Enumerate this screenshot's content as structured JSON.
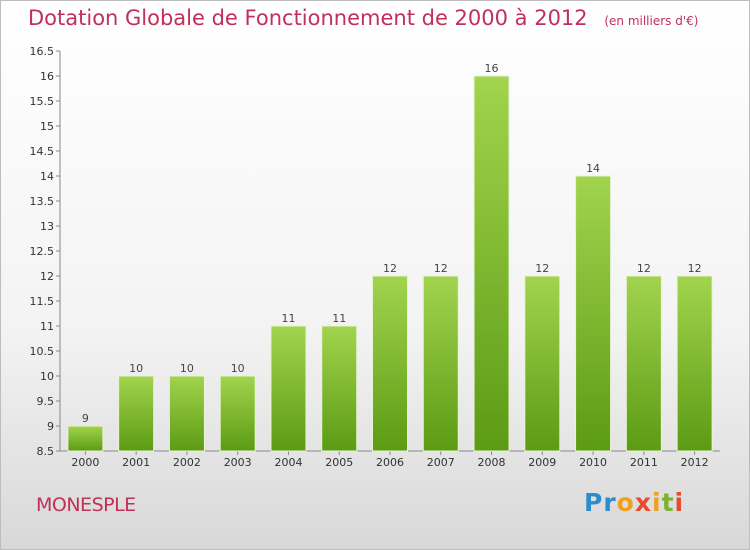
{
  "header": {
    "title": "Dotation Globale de Fonctionnement de 2000 à 2012",
    "unit": "(en milliers d'€)"
  },
  "footer": {
    "city": "MONESPLE",
    "brand": "Proxiti"
  },
  "colors": {
    "title": "#c0305a",
    "bar_top": "#9ed14a",
    "bar_bottom": "#5a9a12"
  },
  "chart_data": {
    "type": "bar",
    "title": "Dotation Globale de Fonctionnement de 2000 à 2012",
    "subtitle": "(en milliers d'€)",
    "categories": [
      "2000",
      "2001",
      "2002",
      "2003",
      "2004",
      "2005",
      "2006",
      "2007",
      "2008",
      "2009",
      "2010",
      "2011",
      "2012"
    ],
    "values": [
      9,
      10,
      10,
      10,
      11,
      11,
      12,
      12,
      16,
      12,
      14,
      12,
      12
    ],
    "ylim": [
      8.5,
      16.5
    ],
    "yticks": [
      "8.5",
      "9",
      "9.5",
      "10",
      "10.5",
      "11",
      "11.5",
      "12",
      "12.5",
      "13",
      "13.5",
      "14",
      "14.5",
      "15",
      "15.5",
      "16",
      "16.5"
    ],
    "grid": false
  }
}
